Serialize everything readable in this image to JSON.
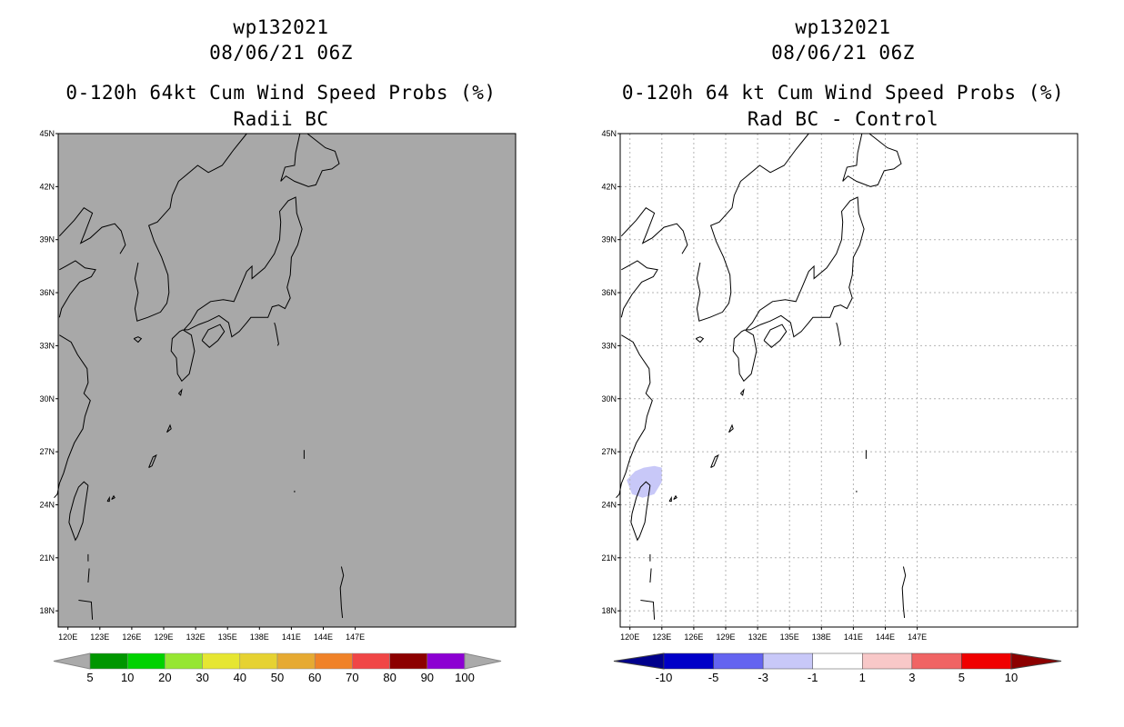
{
  "panels": [
    {
      "storm_id": "wp132021",
      "datetime": "08/06/21 06Z",
      "title": "0-120h 64kt Cum Wind Speed Probs (%)",
      "subtitle": "Radii BC",
      "map_background": "#a8a8a8",
      "gridlines": false,
      "lat_labels": [
        "45N",
        "42N",
        "39N",
        "36N",
        "33N",
        "30N",
        "27N",
        "24N",
        "21N",
        "18N"
      ],
      "lon_labels": [
        "120E",
        "123E",
        "126E",
        "129E",
        "132E",
        "135E",
        "138E",
        "141E",
        "144E",
        "147E"
      ],
      "colorbar": {
        "colors": [
          "#009600",
          "#00d200",
          "#96e632",
          "#e6e632",
          "#e6d232",
          "#e6aa32",
          "#f08228",
          "#f04646",
          "#8c0000",
          "#8c00d2"
        ],
        "end_colors": [
          "#aaaaaa",
          "#aaaaaa"
        ],
        "labels": [
          "5",
          "10",
          "20",
          "30",
          "40",
          "50",
          "60",
          "70",
          "80",
          "90",
          "100"
        ]
      }
    },
    {
      "storm_id": "wp132021",
      "datetime": "08/06/21 06Z",
      "title": "0-120h 64 kt Cum Wind Speed Probs (%)",
      "subtitle": "Rad BC - Control",
      "map_background": "#ffffff",
      "gridlines": true,
      "anomaly_color": "#c8c8f8",
      "lat_labels": [
        "45N",
        "42N",
        "39N",
        "36N",
        "33N",
        "30N",
        "27N",
        "24N",
        "21N",
        "18N"
      ],
      "lon_labels": [
        "120E",
        "123E",
        "126E",
        "129E",
        "132E",
        "135E",
        "138E",
        "141E",
        "144E",
        "147E"
      ],
      "colorbar": {
        "colors": [
          "#0000c8",
          "#6464f0",
          "#c8c8f8",
          "#ffffff",
          "#f8c8c8",
          "#f06464",
          "#f00000"
        ],
        "end_colors": [
          "#00008c",
          "#8c0000"
        ],
        "labels": [
          "-10",
          "-5",
          "-3",
          "-1",
          "1",
          "3",
          "5",
          "10"
        ]
      }
    }
  ]
}
